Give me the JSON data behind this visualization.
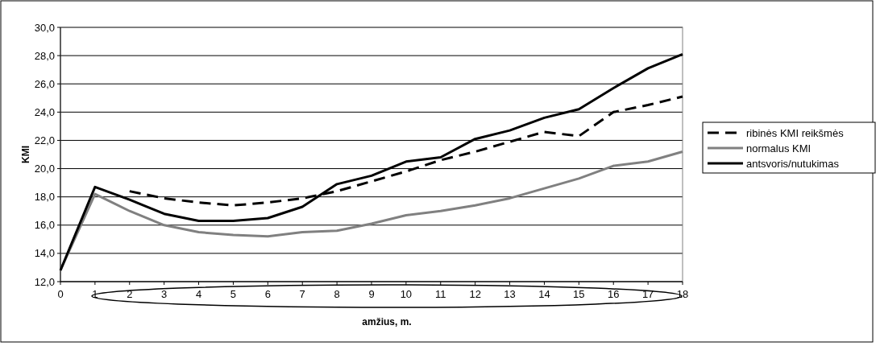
{
  "chart_data": {
    "type": "line",
    "xlabel": "amžius, m.",
    "ylabel": "KMI",
    "x": [
      0,
      1,
      2,
      3,
      4,
      5,
      6,
      7,
      8,
      9,
      10,
      11,
      12,
      13,
      14,
      15,
      16,
      17,
      18
    ],
    "xlim": [
      0,
      18
    ],
    "xticks": [
      0,
      1,
      2,
      3,
      4,
      5,
      6,
      7,
      8,
      9,
      10,
      11,
      12,
      13,
      14,
      15,
      16,
      17,
      18
    ],
    "ylim": [
      12,
      30
    ],
    "yticks": [
      {
        "value": 12,
        "label": "12,0"
      },
      {
        "value": 14,
        "label": "14,0"
      },
      {
        "value": 16,
        "label": "16,0"
      },
      {
        "value": 18,
        "label": "18,0"
      },
      {
        "value": 20,
        "label": "20,0"
      },
      {
        "value": 22,
        "label": "22,0"
      },
      {
        "value": 24,
        "label": "24,0"
      },
      {
        "value": 26,
        "label": "26,0"
      },
      {
        "value": 28,
        "label": "28,0"
      },
      {
        "value": 30,
        "label": "30,0"
      }
    ],
    "grid": "y",
    "legend": "right",
    "marker": "none",
    "series": [
      {
        "name": "ribinės KMI reikšmės",
        "color": "#000000",
        "line_style": "dashed",
        "values": [
          null,
          null,
          18.4,
          17.9,
          17.6,
          17.4,
          17.6,
          17.9,
          18.4,
          19.1,
          19.8,
          20.6,
          21.2,
          21.9,
          22.6,
          22.3,
          24.0,
          24.5,
          25.1
        ]
      },
      {
        "name": "normalus KMI",
        "color": "#808080",
        "line_style": "solid",
        "values": [
          12.8,
          18.2,
          17.0,
          16.0,
          15.5,
          15.3,
          15.2,
          15.5,
          15.6,
          16.1,
          16.7,
          17.0,
          17.4,
          17.9,
          18.6,
          19.3,
          20.2,
          20.5,
          21.2
        ]
      },
      {
        "name": "antsvoris/nutukimas",
        "color": "#000000",
        "line_style": "solid",
        "values": [
          12.8,
          18.7,
          17.8,
          16.8,
          16.3,
          16.3,
          16.5,
          17.3,
          18.9,
          19.5,
          20.5,
          20.8,
          22.1,
          22.7,
          23.6,
          24.2,
          25.7,
          27.1,
          28.1
        ]
      }
    ]
  }
}
